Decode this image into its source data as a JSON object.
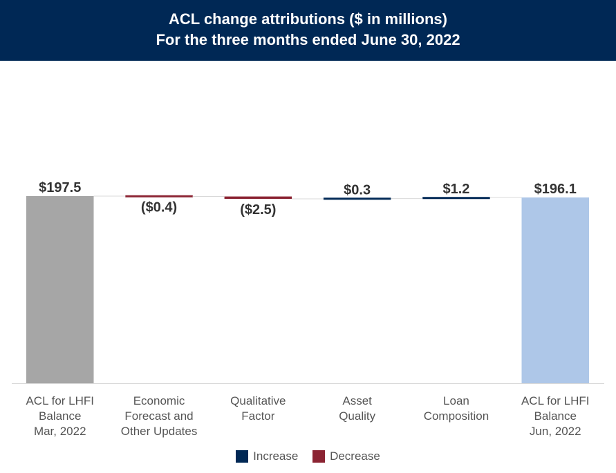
{
  "title": {
    "line1": "ACL change attributions ($ in millions)",
    "line2": "For the three months ended June 30, 2022"
  },
  "chart_data": {
    "type": "waterfall",
    "ylim": [
      0,
      197.5
    ],
    "categories": [
      {
        "lines": [
          "ACL for LHFI",
          "Balance",
          "Mar, 2022"
        ]
      },
      {
        "lines": [
          "Economic",
          "Forecast and",
          "Other Updates"
        ]
      },
      {
        "lines": [
          "Qualitative",
          "Factor"
        ]
      },
      {
        "lines": [
          "Asset",
          "Quality"
        ]
      },
      {
        "lines": [
          "Loan",
          "Composition"
        ]
      },
      {
        "lines": [
          "ACL for LHFI",
          "Balance",
          "Jun, 2022"
        ]
      }
    ],
    "bars": [
      {
        "kind": "total",
        "value": 197.5,
        "label": "$197.5",
        "color": "#a6a6a6"
      },
      {
        "kind": "decrease",
        "value": -0.4,
        "label": "($0.4)",
        "color": "#8b2332"
      },
      {
        "kind": "decrease",
        "value": -2.5,
        "label": "($2.5)",
        "color": "#8b2332"
      },
      {
        "kind": "increase",
        "value": 0.3,
        "label": "$0.3",
        "color": "#002855"
      },
      {
        "kind": "increase",
        "value": 1.2,
        "label": "$1.2",
        "color": "#002855"
      },
      {
        "kind": "total",
        "value": 196.1,
        "label": "$196.1",
        "color": "#aec7e8"
      }
    ],
    "legend": [
      {
        "label": "Increase",
        "color": "#002855"
      },
      {
        "label": "Decrease",
        "color": "#8b2332"
      }
    ]
  }
}
